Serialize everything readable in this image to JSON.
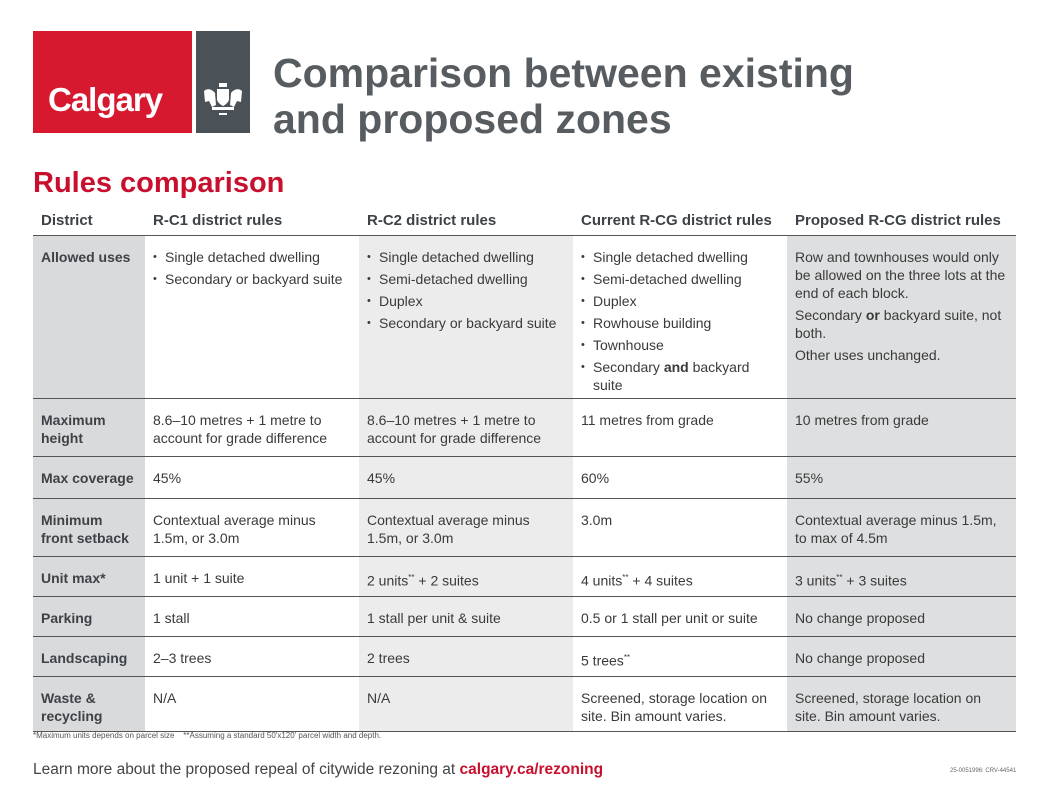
{
  "logo": {
    "text": "Calgary",
    "crest": "city-crest"
  },
  "title_line1": "Comparison between existing",
  "title_line2": "and proposed zones",
  "section": "Rules comparison",
  "columns": [
    "District",
    "R-C1 district rules",
    "R-C2 district rules",
    "Current R-CG district rules",
    "Proposed R-CG district rules"
  ],
  "rows": [
    {
      "label": "Allowed uses",
      "cells": [
        {
          "type": "list",
          "items": [
            [
              {
                "t": "Single detached dwelling"
              }
            ],
            [
              {
                "t": "Secondary or backyard suite"
              }
            ]
          ]
        },
        {
          "type": "list",
          "items": [
            [
              {
                "t": "Single detached dwelling"
              }
            ],
            [
              {
                "t": "Semi-detached dwelling"
              }
            ],
            [
              {
                "t": "Duplex"
              }
            ],
            [
              {
                "t": "Secondary or backyard suite"
              }
            ]
          ]
        },
        {
          "type": "list",
          "items": [
            [
              {
                "t": "Single detached dwelling"
              }
            ],
            [
              {
                "t": "Semi-detached dwelling"
              }
            ],
            [
              {
                "t": "Duplex"
              }
            ],
            [
              {
                "t": "Rowhouse building"
              }
            ],
            [
              {
                "t": "Townhouse"
              }
            ],
            [
              {
                "t": "Secondary "
              },
              {
                "t": "and",
                "b": true
              },
              {
                "t": " backyard suite"
              }
            ]
          ]
        },
        {
          "type": "text",
          "items": [
            [
              {
                "t": "Row and townhouses would only be allowed on the three lots at the end of each block."
              }
            ],
            [
              {
                "t": "Secondary "
              },
              {
                "t": "or",
                "b": true
              },
              {
                "t": " backyard suite, not both."
              }
            ],
            [
              {
                "t": "Other uses unchanged."
              }
            ]
          ]
        }
      ]
    },
    {
      "label": "Maximum height",
      "cells": [
        {
          "type": "text",
          "items": [
            [
              {
                "t": "8.6–10 metres + 1 metre to account for grade difference"
              }
            ]
          ]
        },
        {
          "type": "text",
          "items": [
            [
              {
                "t": "8.6–10 metres + 1 metre to account for grade difference"
              }
            ]
          ]
        },
        {
          "type": "text",
          "items": [
            [
              {
                "t": "11 metres from grade"
              }
            ]
          ]
        },
        {
          "type": "text",
          "items": [
            [
              {
                "t": "10 metres from grade"
              }
            ]
          ]
        }
      ]
    },
    {
      "label": "Max coverage",
      "cells": [
        {
          "type": "text",
          "items": [
            [
              {
                "t": "45%"
              }
            ]
          ]
        },
        {
          "type": "text",
          "items": [
            [
              {
                "t": "45%"
              }
            ]
          ]
        },
        {
          "type": "text",
          "items": [
            [
              {
                "t": "60%"
              }
            ]
          ]
        },
        {
          "type": "text",
          "items": [
            [
              {
                "t": "55%"
              }
            ]
          ]
        }
      ]
    },
    {
      "label": "Minimum front setback",
      "cells": [
        {
          "type": "text",
          "items": [
            [
              {
                "t": "Contextual average minus 1.5m, or 3.0m"
              }
            ]
          ]
        },
        {
          "type": "text",
          "items": [
            [
              {
                "t": "Contextual average minus 1.5m, or 3.0m"
              }
            ]
          ]
        },
        {
          "type": "text",
          "items": [
            [
              {
                "t": "3.0m"
              }
            ]
          ]
        },
        {
          "type": "text",
          "items": [
            [
              {
                "t": "Contextual average minus 1.5m, to max of 4.5m"
              }
            ]
          ]
        }
      ]
    },
    {
      "label": "Unit max*",
      "cells": [
        {
          "type": "text",
          "items": [
            [
              {
                "t": "1 unit + 1 suite"
              }
            ]
          ]
        },
        {
          "type": "text",
          "items": [
            [
              {
                "t": "2 units"
              },
              {
                "t": "**",
                "sup": true
              },
              {
                "t": " + 2 suites"
              }
            ]
          ]
        },
        {
          "type": "text",
          "items": [
            [
              {
                "t": "4 units"
              },
              {
                "t": "**",
                "sup": true
              },
              {
                "t": " + 4 suites"
              }
            ]
          ]
        },
        {
          "type": "text",
          "items": [
            [
              {
                "t": "3 units"
              },
              {
                "t": "**",
                "sup": true
              },
              {
                "t": " + 3 suites"
              }
            ]
          ]
        }
      ]
    },
    {
      "label": "Parking",
      "cells": [
        {
          "type": "text",
          "items": [
            [
              {
                "t": "1 stall"
              }
            ]
          ]
        },
        {
          "type": "text",
          "items": [
            [
              {
                "t": "1 stall per unit & suite"
              }
            ]
          ]
        },
        {
          "type": "text",
          "items": [
            [
              {
                "t": "0.5 or 1 stall per unit or suite"
              }
            ]
          ]
        },
        {
          "type": "text",
          "items": [
            [
              {
                "t": "No change proposed"
              }
            ]
          ]
        }
      ]
    },
    {
      "label": "Landscaping",
      "cells": [
        {
          "type": "text",
          "items": [
            [
              {
                "t": "2–3 trees"
              }
            ]
          ]
        },
        {
          "type": "text",
          "items": [
            [
              {
                "t": "2 trees"
              }
            ]
          ]
        },
        {
          "type": "text",
          "items": [
            [
              {
                "t": "5 trees"
              },
              {
                "t": "**",
                "sup": true
              }
            ]
          ]
        },
        {
          "type": "text",
          "items": [
            [
              {
                "t": "No change proposed"
              }
            ]
          ]
        }
      ]
    },
    {
      "label": "Waste & recycling",
      "cells": [
        {
          "type": "text",
          "items": [
            [
              {
                "t": "N/A"
              }
            ]
          ]
        },
        {
          "type": "text",
          "items": [
            [
              {
                "t": "N/A"
              }
            ]
          ]
        },
        {
          "type": "text",
          "items": [
            [
              {
                "t": "Screened, storage location on site. Bin amount varies."
              }
            ]
          ]
        },
        {
          "type": "text",
          "items": [
            [
              {
                "t": "Screened, storage location on site. Bin amount varies."
              }
            ]
          ]
        }
      ]
    }
  ],
  "row_heights": [],
  "footnote": "*Maximum units depends on parcel size    **Assuming a standard 50'x120' parcel width and depth.",
  "learn_more": "Learn more about the proposed repeal of citywide rezoning at ",
  "link": "calgary.ca/rezoning",
  "doc_code": "25-0051996: CRV-44541",
  "colors": {
    "brand_red": "#d6192f",
    "crest_gray": "#4a5157",
    "heading_red": "#c8102e"
  }
}
